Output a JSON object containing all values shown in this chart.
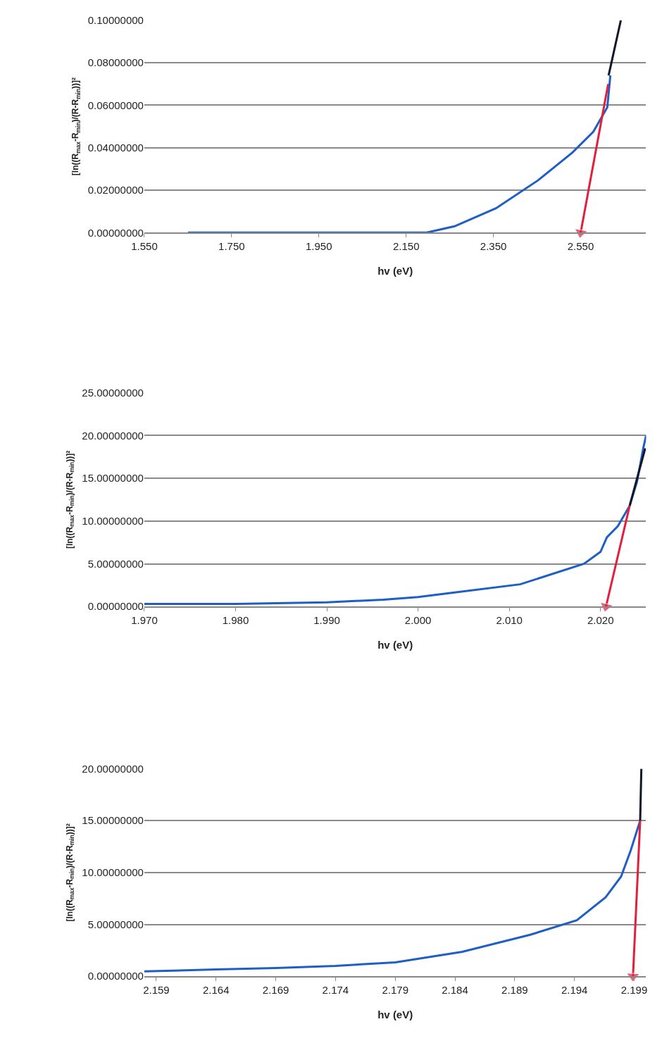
{
  "chart_data": [
    {
      "type": "line",
      "xlabel": "hv (eV)",
      "ylabel": "[ln((R$_{max}$-R$_{min}$)/(R-R$_{min}$))]²",
      "grid": "y",
      "xlim": [
        1.55,
        2.7
      ],
      "xticks": [
        {
          "value": 1.55,
          "label": "1.550"
        },
        {
          "value": 1.75,
          "label": "1.750"
        },
        {
          "value": 1.95,
          "label": "1.950"
        },
        {
          "value": 2.15,
          "label": "2.150"
        },
        {
          "value": 2.35,
          "label": "2.350"
        },
        {
          "value": 2.55,
          "label": "2.550"
        }
      ],
      "ylim": [
        0,
        0.1
      ],
      "yticks": [
        {
          "value": 0,
          "label": "0.00000000"
        },
        {
          "value": 0.02,
          "label": "0.02000000"
        },
        {
          "value": 0.04,
          "label": "0.04000000"
        },
        {
          "value": 0.06,
          "label": "0.06000000"
        },
        {
          "value": 0.08,
          "label": "0.08000000"
        },
        {
          "value": 0.1,
          "label": "0.10000000"
        }
      ],
      "series": [
        {
          "color": "#1f5fc4",
          "x": [
            1.65,
            1.9,
            2.1,
            2.197,
            2.261,
            2.356,
            2.452,
            2.531,
            2.579,
            2.611,
            2.618
          ],
          "values": [
            0,
            0,
            0,
            0,
            0.003,
            0.0115,
            0.0246,
            0.0377,
            0.0475,
            0.059,
            0.074
          ]
        },
        {
          "color": "#101828",
          "x": [
            2.614,
            2.642
          ],
          "values": [
            0.074,
            0.1
          ]
        },
        {
          "color": "#e0203c",
          "marker": "triangle",
          "x": [
            2.613,
            2.55
          ],
          "values": [
            0.07,
            0
          ]
        }
      ]
    },
    {
      "type": "line",
      "xlabel": "hv (eV)",
      "ylabel": "[ln((R$_{max}$-R$_{min}$)/(R-R$_{min}$))]²",
      "grid": "y",
      "xlim": [
        1.97,
        2.025
      ],
      "xticks": [
        {
          "value": 1.97,
          "label": "1.970"
        },
        {
          "value": 1.98,
          "label": "1.980"
        },
        {
          "value": 1.99,
          "label": "1.990"
        },
        {
          "value": 2.0,
          "label": "2.000"
        },
        {
          "value": 2.01,
          "label": "2.010"
        },
        {
          "value": 2.02,
          "label": "2.020"
        }
      ],
      "ylim": [
        0,
        25
      ],
      "yticks": [
        {
          "value": 0,
          "label": "0.00000000"
        },
        {
          "value": 5,
          "label": "5.00000000"
        },
        {
          "value": 10,
          "label": "10.00000000"
        },
        {
          "value": 15,
          "label": "15.00000000"
        },
        {
          "value": 20,
          "label": "20.00000000"
        },
        {
          "value": 25,
          "label": "25.00000000"
        }
      ],
      "series": [
        {
          "color": "#1f5fc4",
          "x": [
            1.97,
            1.98,
            1.99,
            1.9962,
            2.0,
            2.0037,
            2.0112,
            2.0182,
            2.02,
            2.0207,
            2.0219,
            2.0232,
            2.024,
            2.0247,
            2.025
          ],
          "values": [
            0.3,
            0.3,
            0.5,
            0.8,
            1.1,
            1.6,
            2.6,
            5.0,
            6.4,
            8.1,
            9.4,
            11.8,
            14.6,
            18.6,
            20
          ]
        },
        {
          "color": "#101828",
          "x": [
            2.0232,
            2.0249
          ],
          "values": [
            11.8,
            18.5
          ]
        },
        {
          "color": "#e0203c",
          "marker": "triangle",
          "x": [
            2.0232,
            2.0206
          ],
          "values": [
            11.8,
            0
          ]
        }
      ]
    },
    {
      "type": "line",
      "xlabel": "hv (eV)",
      "ylabel": "[ln((R$_{max}$-R$_{min}$)/(R-R$_{min}$))]²",
      "grid": "y",
      "xlim": [
        2.158,
        2.2
      ],
      "xticks": [
        {
          "value": 2.159,
          "label": "2.159"
        },
        {
          "value": 2.164,
          "label": "2.164"
        },
        {
          "value": 2.169,
          "label": "2.169"
        },
        {
          "value": 2.174,
          "label": "2.174"
        },
        {
          "value": 2.179,
          "label": "2.179"
        },
        {
          "value": 2.184,
          "label": "2.184"
        },
        {
          "value": 2.189,
          "label": "2.189"
        },
        {
          "value": 2.194,
          "label": "2.194"
        },
        {
          "value": 2.199,
          "label": "2.199"
        }
      ],
      "ylim": [
        0,
        20
      ],
      "yticks": [
        {
          "value": 0,
          "label": "0.00000000"
        },
        {
          "value": 5,
          "label": "5.00000000"
        },
        {
          "value": 10,
          "label": "10.00000000"
        },
        {
          "value": 15,
          "label": "15.00000000"
        },
        {
          "value": 20,
          "label": "20.00000000"
        }
      ],
      "series": [
        {
          "color": "#1f5fc4",
          "x": [
            2.158,
            2.164,
            2.169,
            2.174,
            2.179,
            2.1846,
            2.1903,
            2.1942,
            2.1966,
            2.1979,
            2.1987,
            2.1995
          ],
          "values": [
            0.47,
            0.65,
            0.8,
            1.0,
            1.34,
            2.35,
            4.0,
            5.4,
            7.6,
            9.6,
            12.1,
            15
          ]
        },
        {
          "color": "#101828",
          "x": [
            2.1995,
            2.1996
          ],
          "values": [
            15,
            20
          ]
        },
        {
          "color": "#e0203c",
          "marker": "triangle",
          "x": [
            2.1995,
            2.1989
          ],
          "values": [
            15,
            0
          ]
        }
      ]
    }
  ]
}
